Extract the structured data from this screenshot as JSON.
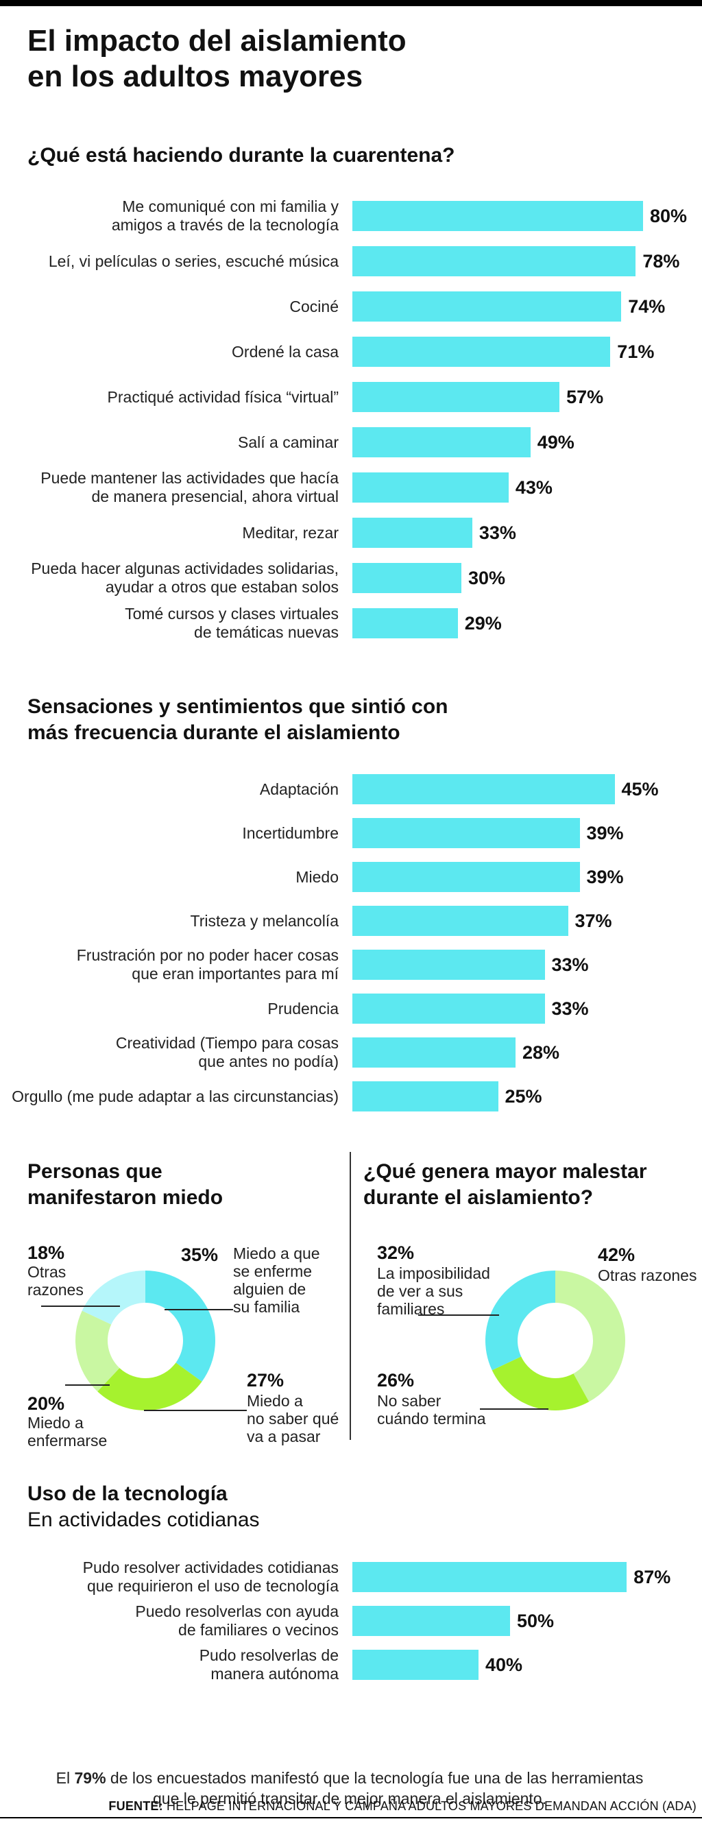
{
  "title_line1": "El impacto del aislamiento",
  "title_line2": "en los adultos mayores",
  "colors": {
    "cyan": "#5ce8f0",
    "light_cyan": "#b5f6fa",
    "green": "#a6f22e",
    "light_green": "#c9f7a2"
  },
  "chart_data": [
    {
      "type": "bar",
      "title": "¿Qué está haciendo durante la cuarentena?",
      "categories": [
        [
          "Me comuniqué con mi familia y",
          "amigos a través de la tecnología"
        ],
        [
          "Leí, vi películas o series, escuché música"
        ],
        [
          "Cociné"
        ],
        [
          "Ordené la casa"
        ],
        [
          "Practiqué actividad física “virtual”"
        ],
        [
          "Salí a caminar"
        ],
        [
          "Puede mantener las actividades que hacía",
          "de manera presencial, ahora virtual"
        ],
        [
          "Meditar, rezar"
        ],
        [
          "Pueda hacer algunas actividades solidarias,",
          "ayudar a otros que estaban solos"
        ],
        [
          "Tomé cursos y clases virtuales",
          "de temáticas nuevas"
        ]
      ],
      "values": [
        80,
        78,
        74,
        71,
        57,
        49,
        43,
        33,
        30,
        29
      ],
      "value_labels": [
        "80%",
        "78%",
        "74%",
        "71%",
        "57%",
        "49%",
        "43%",
        "33%",
        "30%",
        "29%"
      ]
    },
    {
      "type": "bar",
      "title_lines": [
        "Sensaciones y sentimientos que sintió con",
        "más frecuencia durante el aislamiento"
      ],
      "categories": [
        [
          "Adaptación"
        ],
        [
          "Incertidumbre"
        ],
        [
          "Miedo"
        ],
        [
          "Tristeza y melancolía"
        ],
        [
          "Frustración por no poder hacer cosas",
          "que eran importantes para mí"
        ],
        [
          "Prudencia"
        ],
        [
          "Creatividad (Tiempo para cosas",
          "que antes no podía)"
        ],
        [
          "Orgullo (me pude adaptar a las circunstancias)"
        ]
      ],
      "values": [
        45,
        39,
        39,
        37,
        33,
        33,
        28,
        25
      ],
      "value_labels": [
        "45%",
        "39%",
        "39%",
        "37%",
        "33%",
        "33%",
        "28%",
        "25%"
      ]
    },
    {
      "type": "pie",
      "title_lines": [
        "Personas que",
        "manifestaron miedo"
      ],
      "slices": [
        {
          "value": 35,
          "pct": "35%",
          "lines": [
            "Miedo a que",
            "se enferme",
            "alguien de",
            "su familia"
          ]
        },
        {
          "value": 27,
          "pct": "27%",
          "lines": [
            "Miedo a",
            "no saber qué",
            "va a pasar"
          ]
        },
        {
          "value": 20,
          "pct": "20%",
          "lines": [
            "Miedo a",
            "enfermarse"
          ]
        },
        {
          "value": 18,
          "pct": "18%",
          "lines": [
            "Otras",
            "razones"
          ]
        }
      ]
    },
    {
      "type": "pie",
      "title_lines": [
        "¿Qué genera mayor malestar",
        "durante el aislamiento?"
      ],
      "slices": [
        {
          "value": 42,
          "pct": "42%",
          "lines": [
            "Otras razones"
          ]
        },
        {
          "value": 26,
          "pct": "26%",
          "lines": [
            "No saber",
            "cuándo termina"
          ]
        },
        {
          "value": 32,
          "pct": "32%",
          "lines": [
            "La imposibilidad",
            "de ver a sus",
            "familiares"
          ]
        }
      ]
    },
    {
      "type": "bar",
      "title": "Uso de la tecnología",
      "subtitle": "En actividades cotidianas",
      "categories": [
        [
          "Pudo resolver actividades cotidianas",
          "que requirieron el uso de tecnología"
        ],
        [
          "Puedo resolverlas con ayuda",
          "de familiares o vecinos"
        ],
        [
          "Pudo resolverlas de",
          "manera autónoma"
        ]
      ],
      "values": [
        87,
        50,
        40
      ],
      "value_labels": [
        "87%",
        "50%",
        "40%"
      ]
    }
  ],
  "note": {
    "before": "El ",
    "highlight": "79%",
    "after": " de los encuestados manifestó que la tecnología fue una de las herramientas que le permitió transitar de mejor manera el aislamiento."
  },
  "footer": {
    "label": "FUENTE:",
    "text": " HELPAGE INTERNACIONAL Y CAMPAÑA ADULTOS MAYORES DEMANDAN ACCIÓN (ADA)"
  }
}
